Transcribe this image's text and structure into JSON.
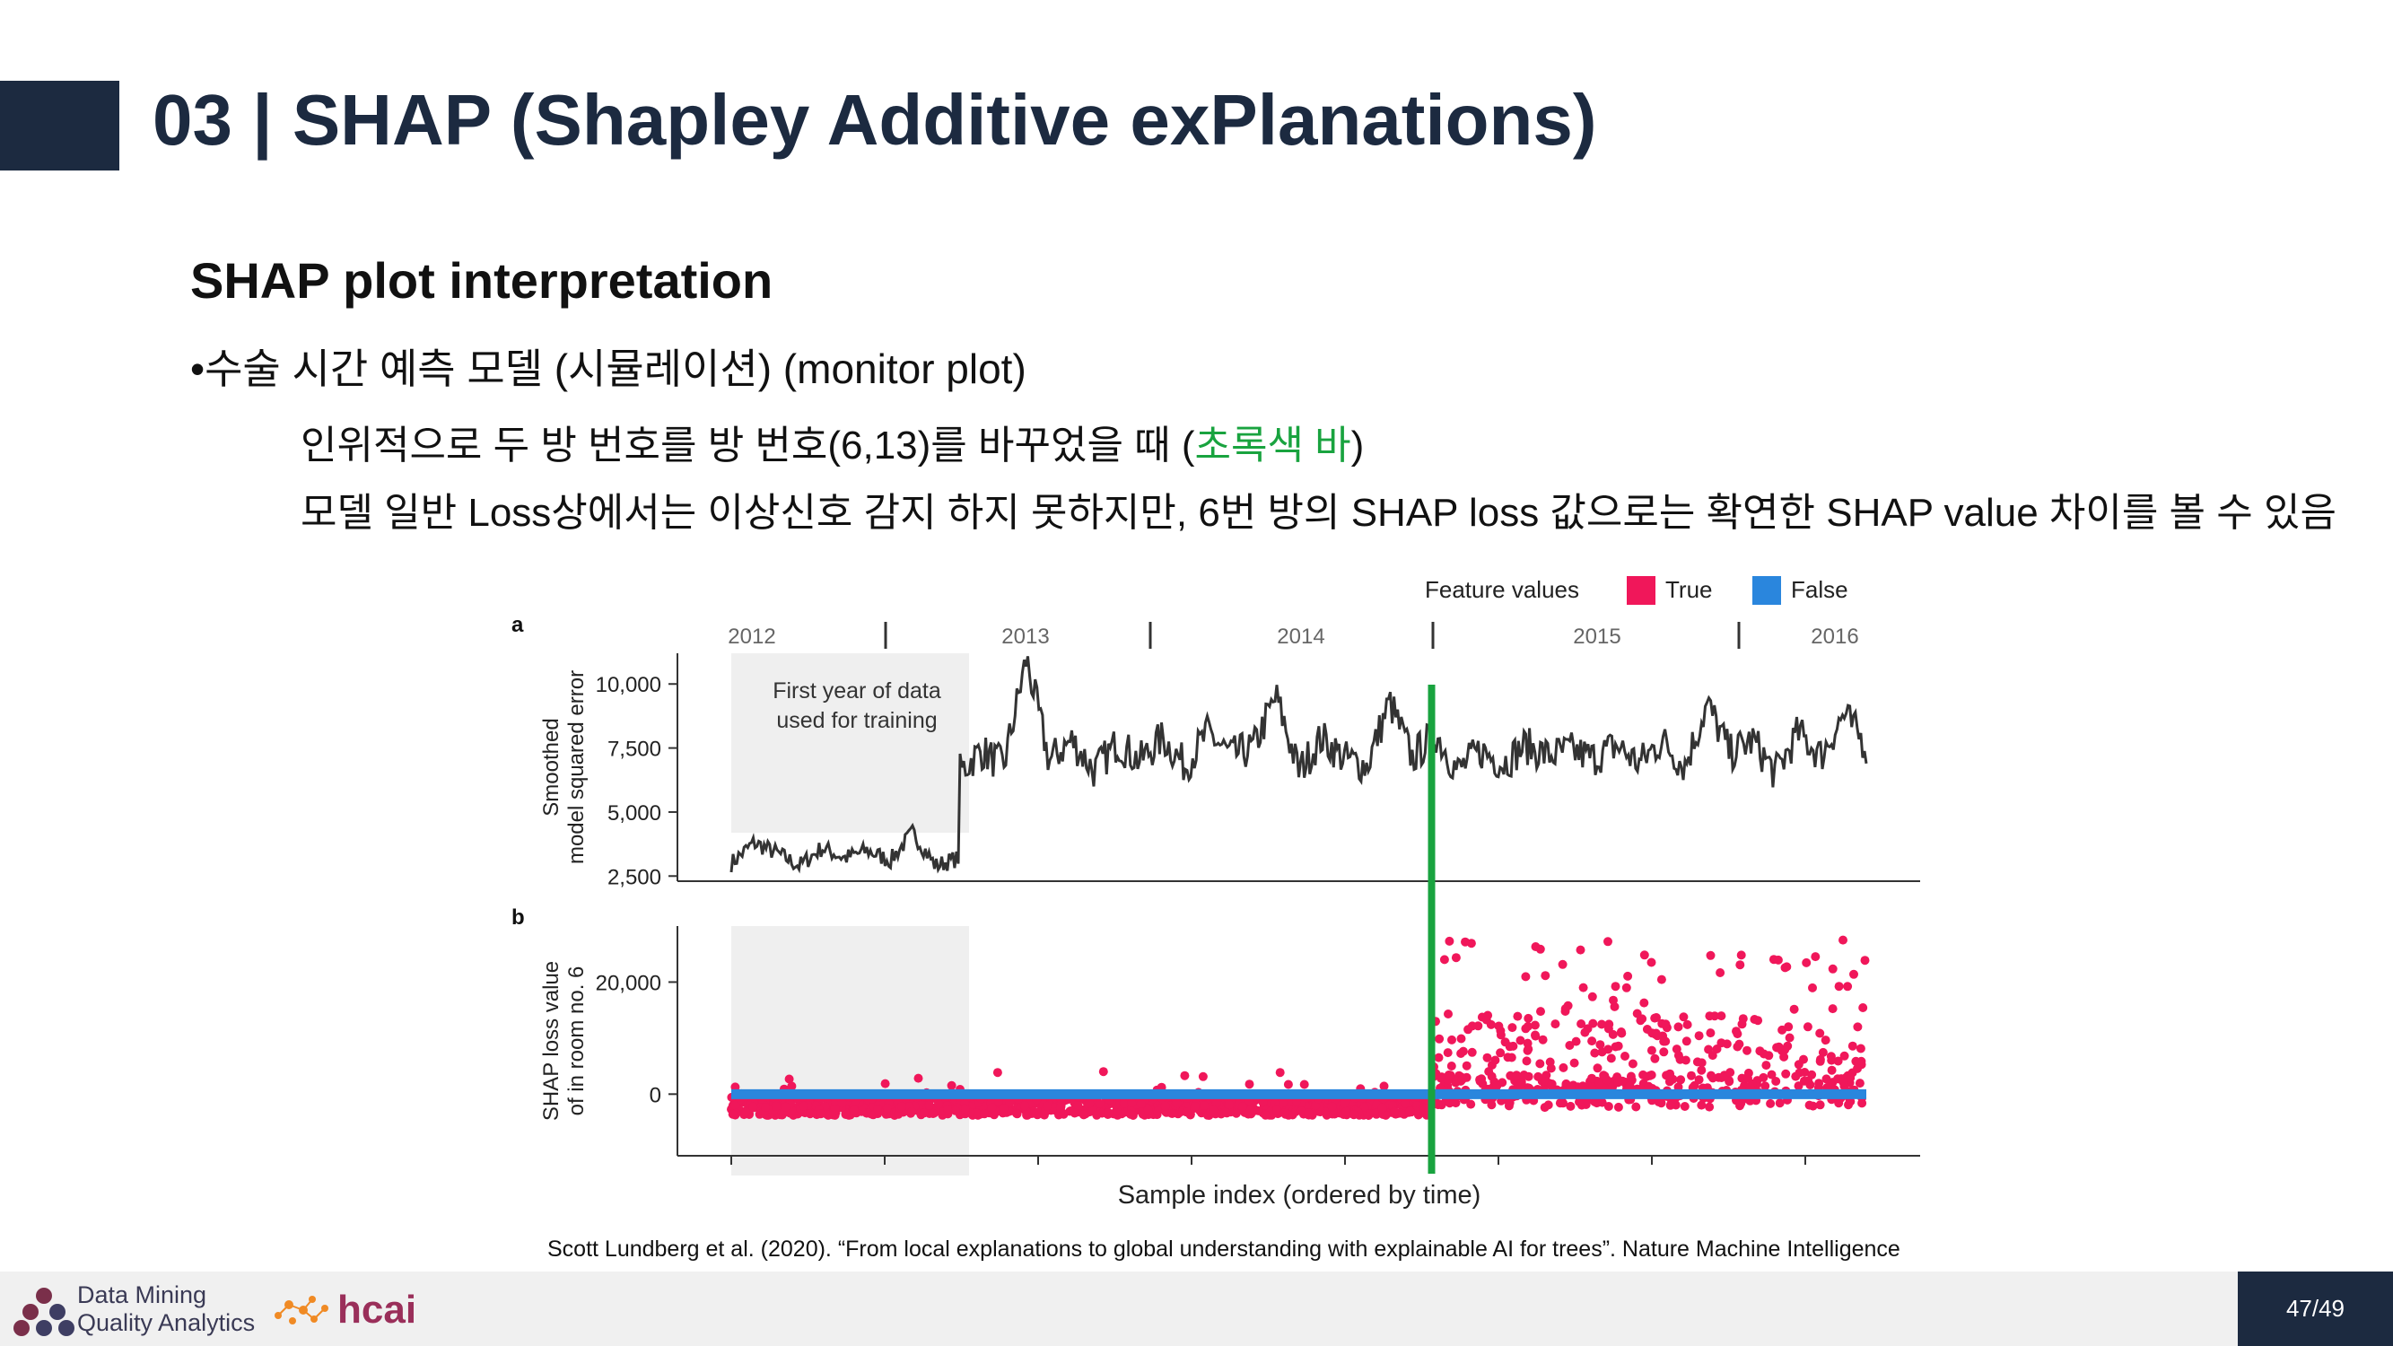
{
  "slide": {
    "title": "03 | SHAP (Shapley Additive exPlanations)",
    "subtitle": "SHAP plot interpretation",
    "bullet": "•수술 시간 예측 모델 (시뮬레이션) (monitor plot)",
    "line1_prefix": "인위적으로 두 방 번호를 방 번호(6,13)를 바꾸었을 때 (",
    "line1_green": "초록색 바",
    "line1_suffix": ")",
    "line2": "모델 일반 Loss상에서는 이상신호 감지 하지 못하지만, 6번 방의 SHAP loss 값으로는 확연한 SHAP value 차이를 볼 수 있음",
    "citation": "Scott Lundberg et al. (2020). “From local explanations to global understanding with explainable AI for trees”. Nature Machine Intelligence",
    "page_number": "47/49"
  },
  "footer": {
    "logo1_line1": "Data Mining",
    "logo1_line2": "Quality Analytics",
    "logo2_text": "hcai"
  },
  "colors": {
    "navy": "#1c2a40",
    "green": "#19a33f",
    "true_color": "#f0175a",
    "false_color": "#2a86dd",
    "line_color": "#333333",
    "training_shade": "#efefef"
  },
  "chart_data": [
    {
      "type": "line",
      "panel_label": "a",
      "ylabel": "Smoothed model squared error",
      "years": [
        "2012",
        "2013",
        "2014",
        "2015",
        "2016"
      ],
      "yticks": [
        "10,000",
        "7,500",
        "5,000",
        "2,500"
      ],
      "ytick_values": [
        10000,
        7500,
        5000,
        2500
      ],
      "ylim": [
        2300,
        11200
      ],
      "training_annotation": "First year of data used for training",
      "x": [
        0.0,
        0.02,
        0.04,
        0.06,
        0.08,
        0.1,
        0.12,
        0.14,
        0.16,
        0.18,
        0.2,
        0.2,
        0.22,
        0.24,
        0.26,
        0.28,
        0.3,
        0.32,
        0.34,
        0.36,
        0.38,
        0.4,
        0.42,
        0.44,
        0.46,
        0.48,
        0.5,
        0.52,
        0.54,
        0.56,
        0.58,
        0.6,
        0.62,
        0.64,
        0.66,
        0.68,
        0.7,
        0.72,
        0.74,
        0.76,
        0.78,
        0.8,
        0.82,
        0.84,
        0.86,
        0.88,
        0.9,
        0.92,
        0.94,
        0.96,
        0.98,
        1.0
      ],
      "values": [
        3000,
        3800,
        3400,
        2900,
        3600,
        3200,
        3500,
        3100,
        4200,
        2900,
        3200,
        6500,
        7400,
        6800,
        11000,
        7000,
        7800,
        6600,
        7700,
        7000,
        7900,
        6800,
        8100,
        7200,
        7500,
        9500,
        6600,
        7900,
        7100,
        6800,
        9300,
        7100,
        8100,
        6600,
        7400,
        6900,
        7600,
        7200,
        7400,
        7100,
        7600,
        6900,
        7800,
        6800,
        9200,
        7300,
        7800,
        6500,
        8100,
        7200,
        8800,
        7600
      ],
      "green_marker_x": 0.617
    },
    {
      "type": "scatter",
      "panel_label": "b",
      "ylabel": "SHAP loss value of in room no. 6",
      "xlabel": "Sample index (ordered by time)",
      "yticks": [
        "20,000",
        "0"
      ],
      "ytick_values": [
        20000,
        0
      ],
      "ylim": [
        -11000,
        30000
      ],
      "legend": {
        "title": "Feature values",
        "entries": [
          "True",
          "False"
        ]
      },
      "series": [
        {
          "name": "True",
          "description": "Before switch: dense band between -4000 and 0; after switch: spread 0 to 29000"
        },
        {
          "name": "False",
          "description": "Flat band near 0 throughout"
        }
      ],
      "green_marker_x": 0.617
    }
  ]
}
